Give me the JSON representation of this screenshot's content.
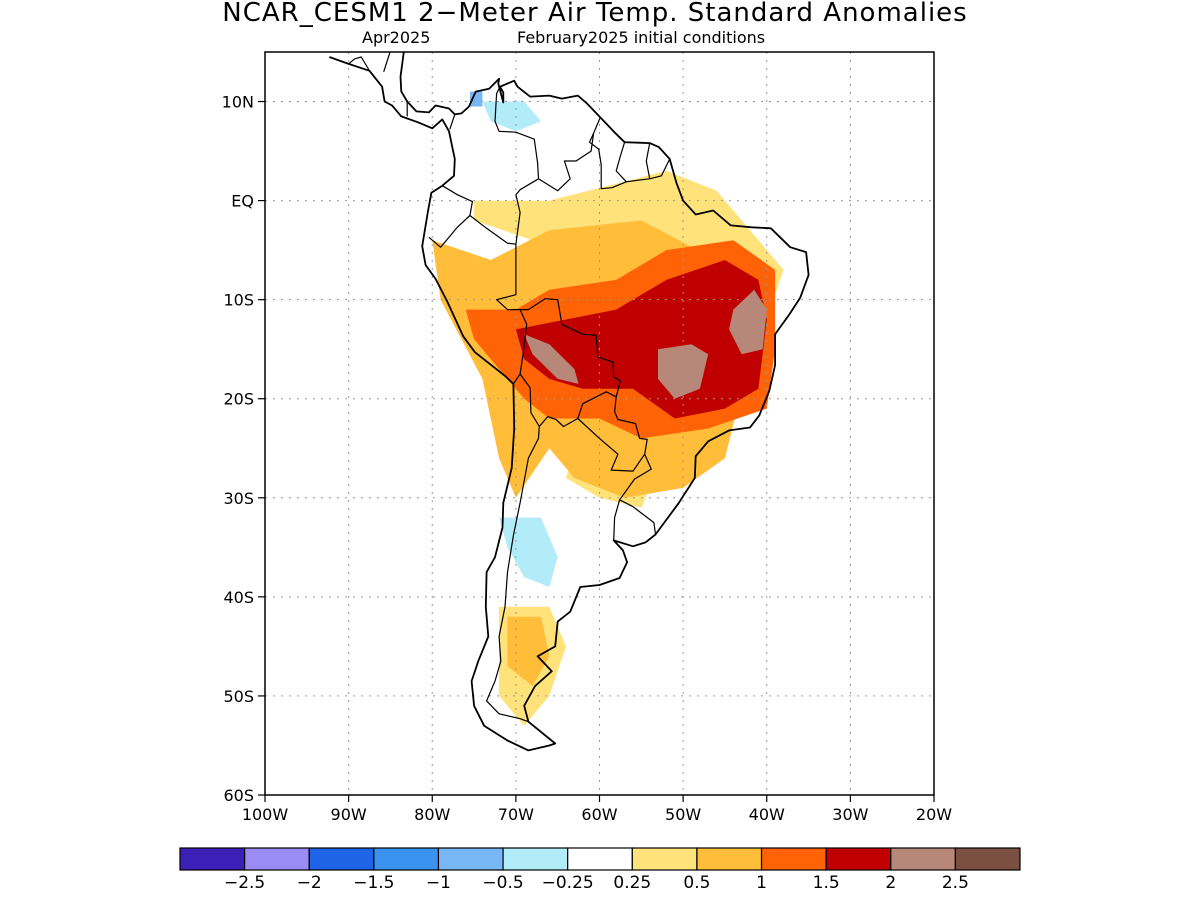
{
  "title": "NCAR_CESM1 2−Meter Air Temp. Standard Anomalies",
  "subtitle_left": "Apr2025",
  "subtitle_right": "February2025 initial conditions",
  "map": {
    "lon_range": [
      -100,
      -20
    ],
    "lat_range": [
      -60,
      15
    ],
    "lat_ticks": [
      {
        "value": 10,
        "label": "10N"
      },
      {
        "value": 0,
        "label": "EQ"
      },
      {
        "value": -10,
        "label": "10S"
      },
      {
        "value": -20,
        "label": "20S"
      },
      {
        "value": -30,
        "label": "30S"
      },
      {
        "value": -40,
        "label": "40S"
      },
      {
        "value": -50,
        "label": "50S"
      },
      {
        "value": -60,
        "label": "60S"
      }
    ],
    "lon_ticks": [
      {
        "value": -100,
        "label": "100W"
      },
      {
        "value": -90,
        "label": "90W"
      },
      {
        "value": -80,
        "label": "80W"
      },
      {
        "value": -70,
        "label": "70W"
      },
      {
        "value": -60,
        "label": "60W"
      },
      {
        "value": -50,
        "label": "50W"
      },
      {
        "value": -40,
        "label": "40W"
      },
      {
        "value": -30,
        "label": "30W"
      },
      {
        "value": -20,
        "label": "20W"
      }
    ],
    "grid": "dotted"
  },
  "colorbar": {
    "colors": [
      "#3b20b8",
      "#9b8cf5",
      "#1f63e6",
      "#3b93f0",
      "#78b7f5",
      "#b2ecf8",
      "#ffffff",
      "#ffe27a",
      "#ffbd3a",
      "#ff6305",
      "#c00000",
      "#b7877a",
      "#7b5042"
    ],
    "labels": [
      "−2.5",
      "−2",
      "−1.5",
      "−1",
      "−0.5",
      "−0.25",
      "0.25",
      "0.5",
      "1",
      "1.5",
      "2",
      "2.5"
    ]
  },
  "anomaly_regions": [
    {
      "level": "0.25 to 0.5",
      "color": "#ffe27a",
      "region": "northern Brazil / Amazon margin",
      "points": [
        [
          -66,
          0
        ],
        [
          -52,
          3
        ],
        [
          -46,
          1
        ],
        [
          -42,
          -3
        ],
        [
          -38,
          -7
        ],
        [
          -40,
          -12
        ],
        [
          -54,
          -6
        ],
        [
          -68,
          -4
        ],
        [
          -75,
          -2
        ],
        [
          -75,
          0
        ]
      ]
    },
    {
      "level": "0.25 to 0.5",
      "color": "#ffe27a",
      "region": "southern Brazil / Uruguay coast",
      "points": [
        [
          -62,
          -22
        ],
        [
          -56,
          -24
        ],
        [
          -53,
          -27
        ],
        [
          -55,
          -31
        ],
        [
          -60,
          -30
        ],
        [
          -64,
          -28
        ]
      ]
    },
    {
      "level": "0.25 to 0.5",
      "color": "#ffe27a",
      "region": "southern Argentina",
      "points": [
        [
          -72,
          -41
        ],
        [
          -66,
          -41
        ],
        [
          -64,
          -45
        ],
        [
          -66,
          -50
        ],
        [
          -69,
          -53
        ],
        [
          -72,
          -50
        ]
      ]
    },
    {
      "level": "0.5 to 1",
      "color": "#ffbd3a",
      "region": "Peru / Bolivia / Paraguay / southern Brazil",
      "points": [
        [
          -80,
          -4
        ],
        [
          -73,
          -6
        ],
        [
          -66,
          -3
        ],
        [
          -55,
          -2
        ],
        [
          -46,
          -6
        ],
        [
          -40,
          -9
        ],
        [
          -45,
          -26
        ],
        [
          -50,
          -29
        ],
        [
          -57,
          -30
        ],
        [
          -63,
          -28
        ],
        [
          -66,
          -25
        ],
        [
          -70,
          -30
        ],
        [
          -72,
          -26
        ],
        [
          -74,
          -18
        ],
        [
          -79,
          -10
        ]
      ]
    },
    {
      "level": "0.5 to 1",
      "color": "#ffbd3a",
      "region": "Patagonia",
      "points": [
        [
          -71,
          -42
        ],
        [
          -67,
          -42
        ],
        [
          -66,
          -46
        ],
        [
          -68,
          -49
        ],
        [
          -71,
          -47
        ]
      ]
    },
    {
      "level": "1 to 1.5",
      "color": "#ff6305",
      "region": "central Brazil / Bolivia / Peru",
      "points": [
        [
          -76,
          -11
        ],
        [
          -70,
          -11
        ],
        [
          -66,
          -9
        ],
        [
          -58,
          -8
        ],
        [
          -52,
          -5
        ],
        [
          -44,
          -4
        ],
        [
          -39,
          -7
        ],
        [
          -39,
          -15
        ],
        [
          -40,
          -21
        ],
        [
          -47,
          -23
        ],
        [
          -55,
          -24
        ],
        [
          -60,
          -22
        ],
        [
          -66,
          -22
        ],
        [
          -69,
          -20
        ],
        [
          -72,
          -17
        ],
        [
          -75,
          -14
        ]
      ]
    },
    {
      "level": "1.5 to 2",
      "color": "#c00000",
      "region": "central and eastern Brazil",
      "points": [
        [
          -70,
          -13
        ],
        [
          -64,
          -12
        ],
        [
          -58,
          -11
        ],
        [
          -52,
          -8
        ],
        [
          -45,
          -6
        ],
        [
          -41,
          -8
        ],
        [
          -40,
          -12
        ],
        [
          -41,
          -19
        ],
        [
          -45,
          -21
        ],
        [
          -51,
          -22
        ],
        [
          -56,
          -19
        ],
        [
          -62,
          -19
        ],
        [
          -66,
          -18
        ],
        [
          -69,
          -16
        ]
      ]
    },
    {
      "level": "2 to 2.5",
      "color": "#b7877a",
      "region": "Bolivia",
      "points": [
        [
          -69,
          -13.5
        ],
        [
          -66,
          -14.5
        ],
        [
          -63,
          -17
        ],
        [
          -62.5,
          -18.5
        ],
        [
          -65,
          -18
        ],
        [
          -68,
          -15.5
        ]
      ]
    },
    {
      "level": "2 to 2.5",
      "color": "#b7877a",
      "region": "Mato Grosso / Goias",
      "points": [
        [
          -53,
          -15
        ],
        [
          -49,
          -14.5
        ],
        [
          -47,
          -15.5
        ],
        [
          -48,
          -19
        ],
        [
          -51,
          -20
        ],
        [
          -53,
          -18
        ]
      ]
    },
    {
      "level": "2 to 2.5",
      "color": "#b7877a",
      "region": "Bahia interior",
      "points": [
        [
          -44,
          -11
        ],
        [
          -41.5,
          -9
        ],
        [
          -40,
          -11
        ],
        [
          -40.5,
          -15
        ],
        [
          -43,
          -15.5
        ],
        [
          -44.5,
          -13
        ]
      ]
    },
    {
      "level": "-0.25 to -0.5",
      "color": "#b2ecf8",
      "region": "Argentina interior",
      "points": [
        [
          -72,
          -32
        ],
        [
          -67,
          -32
        ],
        [
          -65,
          -36
        ],
        [
          -66,
          -39
        ],
        [
          -69,
          -38
        ],
        [
          -71,
          -35
        ]
      ]
    },
    {
      "level": "-0.25 to -0.5",
      "color": "#b2ecf8",
      "region": "Venezuela / Colombia",
      "points": [
        [
          -74,
          10
        ],
        [
          -69,
          10
        ],
        [
          -67,
          8
        ],
        [
          -70,
          7
        ],
        [
          -73,
          8
        ]
      ]
    },
    {
      "level": "-0.5 to -1",
      "color": "#78b7f5",
      "region": "Colombia coast",
      "points": [
        [
          -75.5,
          11
        ],
        [
          -74,
          11
        ],
        [
          -74,
          9.5
        ],
        [
          -75.5,
          9.5
        ]
      ]
    }
  ],
  "coastline": [
    [
      -92.3,
      14.5
    ],
    [
      -90,
      13.8
    ],
    [
      -87.5,
      13.1
    ],
    [
      -86,
      11.5
    ],
    [
      -85.7,
      10
    ],
    [
      -84.8,
      9.6
    ],
    [
      -83.7,
      8.5
    ],
    [
      -81.7,
      7.9
    ],
    [
      -80,
      7.3
    ],
    [
      -78.8,
      8.2
    ],
    [
      -78,
      7
    ],
    [
      -77.3,
      4.2
    ],
    [
      -77.4,
      2.5
    ],
    [
      -78.8,
      1.5
    ],
    [
      -80.1,
      0.8
    ],
    [
      -80.5,
      -1
    ],
    [
      -81.2,
      -4.6
    ],
    [
      -80.8,
      -6.5
    ],
    [
      -79.6,
      -7.9
    ],
    [
      -78.2,
      -10.2
    ],
    [
      -76.3,
      -13.7
    ],
    [
      -74.9,
      -15.3
    ],
    [
      -71.3,
      -17.7
    ],
    [
      -70.3,
      -18.5
    ],
    [
      -70.2,
      -23
    ],
    [
      -70.5,
      -27
    ],
    [
      -71.5,
      -30.5
    ],
    [
      -71.6,
      -33
    ],
    [
      -72.5,
      -36
    ],
    [
      -73.5,
      -37.5
    ],
    [
      -73.6,
      -41
    ],
    [
      -73.3,
      -44
    ],
    [
      -74.5,
      -46.5
    ],
    [
      -75.3,
      -48.5
    ],
    [
      -75,
      -51
    ],
    [
      -73.8,
      -53
    ],
    [
      -71,
      -54.5
    ],
    [
      -68.5,
      -55.5
    ],
    [
      -66,
      -55
    ],
    [
      -65.3,
      -54.8
    ],
    [
      -68.5,
      -52.6
    ],
    [
      -69,
      -51
    ],
    [
      -67.7,
      -49
    ],
    [
      -65.7,
      -47.5
    ],
    [
      -67.4,
      -46
    ],
    [
      -65.3,
      -45
    ],
    [
      -65,
      -42.5
    ],
    [
      -63.5,
      -41.5
    ],
    [
      -62.3,
      -39
    ],
    [
      -60,
      -38.8
    ],
    [
      -57.6,
      -38.1
    ],
    [
      -56.7,
      -36.5
    ],
    [
      -57.2,
      -35.3
    ],
    [
      -58.3,
      -34.3
    ],
    [
      -56,
      -34.9
    ],
    [
      -54.5,
      -34.5
    ],
    [
      -53.3,
      -33.7
    ],
    [
      -50.5,
      -30.5
    ],
    [
      -48.6,
      -28
    ],
    [
      -48.5,
      -25.8
    ],
    [
      -47,
      -24.3
    ],
    [
      -44.5,
      -23.2
    ],
    [
      -42,
      -22.9
    ],
    [
      -40.9,
      -21.7
    ],
    [
      -39.7,
      -19.2
    ],
    [
      -39,
      -16.6
    ],
    [
      -39,
      -13.5
    ],
    [
      -38.5,
      -12.9
    ],
    [
      -37.3,
      -11.5
    ],
    [
      -36,
      -9.8
    ],
    [
      -35,
      -7.5
    ],
    [
      -35.3,
      -5.2
    ],
    [
      -37.2,
      -4.7
    ],
    [
      -39.5,
      -2.8
    ],
    [
      -41.8,
      -2.7
    ],
    [
      -44.3,
      -2.5
    ],
    [
      -46.4,
      -1
    ],
    [
      -48.5,
      -1.4
    ],
    [
      -50,
      0
    ],
    [
      -50.8,
      1.8
    ],
    [
      -51.6,
      4.2
    ],
    [
      -52.9,
      5.4
    ],
    [
      -54,
      5.8
    ],
    [
      -57,
      5.9
    ],
    [
      -58.1,
      6.8
    ],
    [
      -59.9,
      8.4
    ],
    [
      -61.5,
      9.8
    ],
    [
      -62.6,
      10.6
    ],
    [
      -64.5,
      10.3
    ],
    [
      -66,
      10.6
    ],
    [
      -68.3,
      10.5
    ],
    [
      -69.8,
      11.5
    ],
    [
      -70.2,
      12.1
    ],
    [
      -71.9,
      11.5
    ],
    [
      -71.5,
      10.9
    ],
    [
      -71.5,
      9.9
    ],
    [
      -72.1,
      11.8
    ],
    [
      -72,
      12.3
    ],
    [
      -73.2,
      11.3
    ],
    [
      -74.8,
      11
    ],
    [
      -75.6,
      9.5
    ],
    [
      -76.5,
      8.8
    ],
    [
      -77.3,
      8.7
    ],
    [
      -78,
      9.3
    ],
    [
      -79.6,
      9.6
    ],
    [
      -80.4,
      8.9
    ],
    [
      -81.9,
      9
    ],
    [
      -83,
      10
    ],
    [
      -83.7,
      11
    ],
    [
      -83.8,
      12.5
    ],
    [
      -83.4,
      15
    ],
    [
      -84.7,
      15.9
    ],
    [
      -86,
      16
    ]
  ],
  "borders": [
    [
      [
        -78.8,
        1.5
      ],
      [
        -77,
        0.6
      ],
      [
        -75.2,
        -0.1
      ],
      [
        -75.5,
        -1.5
      ],
      [
        -77,
        -2.7
      ],
      [
        -78,
        -3.7
      ],
      [
        -79,
        -4.7
      ],
      [
        -80.4,
        -3.7
      ]
    ],
    [
      [
        -75.5,
        -1.5
      ],
      [
        -73.5,
        -2.8
      ],
      [
        -71,
        -4.3
      ],
      [
        -70,
        -4.4
      ],
      [
        -70,
        -9.5
      ],
      [
        -72.3,
        -10
      ],
      [
        -71,
        -11
      ],
      [
        -69.5,
        -11
      ],
      [
        -68.7,
        -12.5
      ],
      [
        -69.1,
        -15.3
      ],
      [
        -69.5,
        -17.5
      ],
      [
        -70.3,
        -18.5
      ]
    ],
    [
      [
        -69.5,
        -17.5
      ],
      [
        -68.3,
        -18.9
      ],
      [
        -68.2,
        -21.4
      ],
      [
        -67.2,
        -22.8
      ],
      [
        -67.3,
        -24
      ],
      [
        -68.5,
        -26
      ],
      [
        -69.5,
        -30.5
      ],
      [
        -70.3,
        -33.8
      ],
      [
        -71,
        -37.5
      ],
      [
        -71.3,
        -41
      ],
      [
        -72,
        -44
      ],
      [
        -71.8,
        -46.5
      ],
      [
        -72.5,
        -48.5
      ],
      [
        -73.5,
        -50.5
      ],
      [
        -72,
        -51.8
      ],
      [
        -69.5,
        -52.3
      ],
      [
        -68.5,
        -52.6
      ]
    ],
    [
      [
        -69.5,
        -11
      ],
      [
        -68.5,
        -11
      ],
      [
        -66.5,
        -9.9
      ],
      [
        -65,
        -10
      ],
      [
        -64.5,
        -12.5
      ],
      [
        -62,
        -13.5
      ],
      [
        -60.4,
        -13.6
      ],
      [
        -60.2,
        -15.8
      ],
      [
        -58.4,
        -16.3
      ],
      [
        -58.3,
        -17.8
      ],
      [
        -57.5,
        -18.2
      ],
      [
        -58,
        -19.8
      ],
      [
        -59.2,
        -19.3
      ],
      [
        -62,
        -20.5
      ],
      [
        -62.6,
        -22
      ],
      [
        -64.3,
        -22.8
      ],
      [
        -65.2,
        -22.1
      ],
      [
        -66.2,
        -21.8
      ],
      [
        -67.2,
        -22.8
      ]
    ],
    [
      [
        -58,
        -19.8
      ],
      [
        -58.2,
        -21.3
      ],
      [
        -57.8,
        -22.1
      ],
      [
        -55.7,
        -22.5
      ],
      [
        -55.2,
        -24
      ],
      [
        -54.3,
        -24.1
      ],
      [
        -54.6,
        -25.6
      ],
      [
        -56,
        -27.3
      ],
      [
        -58.6,
        -27.2
      ],
      [
        -57.8,
        -25.6
      ],
      [
        -60,
        -24
      ],
      [
        -62.6,
        -22
      ]
    ],
    [
      [
        -54.6,
        -25.6
      ],
      [
        -53.8,
        -27.1
      ],
      [
        -55.8,
        -28.1
      ],
      [
        -57.6,
        -30.2
      ],
      [
        -56,
        -30.9
      ],
      [
        -53.5,
        -32.5
      ],
      [
        -53.3,
        -33.7
      ]
    ],
    [
      [
        -57.6,
        -30.2
      ],
      [
        -58.2,
        -32
      ],
      [
        -58.3,
        -34.3
      ]
    ],
    [
      [
        -70,
        -4.4
      ],
      [
        -69.5,
        -1.2
      ],
      [
        -70,
        0.6
      ],
      [
        -69.5,
        1.1
      ],
      [
        -67.3,
        2.2
      ],
      [
        -67.4,
        3.8
      ],
      [
        -67.8,
        6.2
      ],
      [
        -70,
        6.9
      ],
      [
        -72,
        7
      ],
      [
        -72.5,
        8
      ],
      [
        -72.3,
        10.8
      ],
      [
        -71.9,
        11.5
      ]
    ],
    [
      [
        -67.3,
        2.2
      ],
      [
        -65,
        1
      ],
      [
        -63.5,
        2.2
      ],
      [
        -64.2,
        4
      ],
      [
        -62.8,
        4
      ],
      [
        -61,
        5
      ],
      [
        -60.7,
        6.8
      ],
      [
        -59.9,
        8.4
      ]
    ],
    [
      [
        -60.7,
        6.8
      ],
      [
        -61.2,
        5.9
      ],
      [
        -60.1,
        5.2
      ],
      [
        -59.8,
        3.6
      ],
      [
        -59.8,
        1.2
      ],
      [
        -58.5,
        1.3
      ],
      [
        -56.8,
        1.9
      ],
      [
        -55,
        2.1
      ],
      [
        -54,
        2.2
      ],
      [
        -52.6,
        2.5
      ],
      [
        -51.6,
        4.2
      ]
    ],
    [
      [
        -57,
        5.9
      ],
      [
        -57.5,
        4.5
      ],
      [
        -58,
        3
      ],
      [
        -56.8,
        1.9
      ]
    ],
    [
      [
        -54,
        5.8
      ],
      [
        -54.4,
        4
      ],
      [
        -54,
        2.2
      ]
    ],
    [
      [
        -77.9,
        7.2
      ],
      [
        -77.3,
        8.7
      ]
    ],
    [
      [
        -83,
        8.5
      ],
      [
        -83,
        10
      ]
    ],
    [
      [
        -87.5,
        13.1
      ],
      [
        -88.5,
        14.5
      ],
      [
        -89.3,
        14.3
      ],
      [
        -90,
        13.8
      ]
    ],
    [
      [
        -85.8,
        13
      ],
      [
        -84.7,
        15.9
      ]
    ]
  ]
}
